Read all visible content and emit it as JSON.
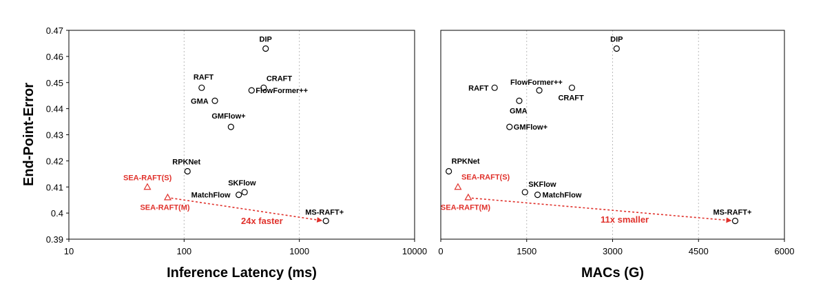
{
  "colors": {
    "highlight": "#e0312b",
    "marker": "#000000",
    "grid": "#b9b9b9",
    "frame": "#000000"
  },
  "chart_data": [
    {
      "type": "scatter",
      "ylabel": "End-Point-Error",
      "xlabel": "Inference Latency (ms)",
      "xscale": "log",
      "xlim": [
        10,
        10000
      ],
      "ylim": [
        0.39,
        0.47
      ],
      "xticks": [
        10,
        100,
        1000,
        10000
      ],
      "xtick_labels": [
        "10",
        "100",
        "1000",
        "10000"
      ],
      "yticks": [
        0.39,
        0.4,
        0.41,
        0.42,
        0.43,
        0.44,
        0.45,
        0.46,
        0.47
      ],
      "ytick_labels": [
        "0.39",
        "0.4",
        "0.41",
        "0.42",
        "0.43",
        "0.44",
        "0.45",
        "0.46",
        "0.47"
      ],
      "grid": "vertical dashed",
      "points": [
        {
          "label": "DIP",
          "x": 510,
          "y": 0.463,
          "marker": "circle"
        },
        {
          "label": "RAFT",
          "x": 142,
          "y": 0.448,
          "marker": "circle"
        },
        {
          "label": "CRAFT",
          "x": 490,
          "y": 0.448,
          "marker": "circle"
        },
        {
          "label": "FlowFormer++",
          "x": 385,
          "y": 0.447,
          "marker": "circle"
        },
        {
          "label": "GMA",
          "x": 185,
          "y": 0.443,
          "marker": "circle"
        },
        {
          "label": "GMFlow+",
          "x": 255,
          "y": 0.433,
          "marker": "circle"
        },
        {
          "label": "RPKNet",
          "x": 107,
          "y": 0.416,
          "marker": "circle"
        },
        {
          "label": "SKFlow",
          "x": 335,
          "y": 0.408,
          "marker": "circle"
        },
        {
          "label": "MatchFlow",
          "x": 298,
          "y": 0.407,
          "marker": "circle"
        },
        {
          "label": "MS-RAFT+",
          "x": 1700,
          "y": 0.397,
          "marker": "circle"
        },
        {
          "label": "SEA-RAFT(S)",
          "x": 48,
          "y": 0.41,
          "marker": "triangle",
          "highlight": true
        },
        {
          "label": "SEA-RAFT(M)",
          "x": 72,
          "y": 0.406,
          "marker": "triangle",
          "highlight": true
        }
      ],
      "annotation": {
        "text": "24x faster",
        "from": {
          "x": 72,
          "y": 0.406
        },
        "to": {
          "x": 1700,
          "y": 0.397
        }
      }
    },
    {
      "type": "scatter",
      "xlabel": "MACs (G)",
      "xscale": "linear",
      "xlim": [
        0,
        6000
      ],
      "ylim": [
        0.39,
        0.47
      ],
      "xticks": [
        0,
        1500,
        3000,
        4500,
        6000
      ],
      "xtick_labels": [
        "0",
        "1500",
        "3000",
        "4500",
        "6000"
      ],
      "grid": "vertical dashed",
      "points": [
        {
          "label": "DIP",
          "x": 3070,
          "y": 0.463,
          "marker": "circle"
        },
        {
          "label": "RAFT",
          "x": 940,
          "y": 0.448,
          "marker": "circle"
        },
        {
          "label": "FlowFormer++",
          "x": 1720,
          "y": 0.447,
          "marker": "circle"
        },
        {
          "label": "CRAFT",
          "x": 2290,
          "y": 0.448,
          "marker": "circle"
        },
        {
          "label": "GMA",
          "x": 1370,
          "y": 0.443,
          "marker": "circle"
        },
        {
          "label": "GMFlow+",
          "x": 1200,
          "y": 0.433,
          "marker": "circle"
        },
        {
          "label": "RPKNet",
          "x": 140,
          "y": 0.416,
          "marker": "circle"
        },
        {
          "label": "SKFlow",
          "x": 1470,
          "y": 0.408,
          "marker": "circle"
        },
        {
          "label": "MatchFlow",
          "x": 1690,
          "y": 0.407,
          "marker": "circle"
        },
        {
          "label": "MS-RAFT+",
          "x": 5140,
          "y": 0.397,
          "marker": "circle"
        },
        {
          "label": "SEA-RAFT(S)",
          "x": 300,
          "y": 0.41,
          "marker": "triangle",
          "highlight": true
        },
        {
          "label": "SEA-RAFT(M)",
          "x": 480,
          "y": 0.406,
          "marker": "triangle",
          "highlight": true
        }
      ],
      "annotation": {
        "text": "11x smaller",
        "from": {
          "x": 480,
          "y": 0.406
        },
        "to": {
          "x": 5140,
          "y": 0.397
        }
      }
    }
  ]
}
